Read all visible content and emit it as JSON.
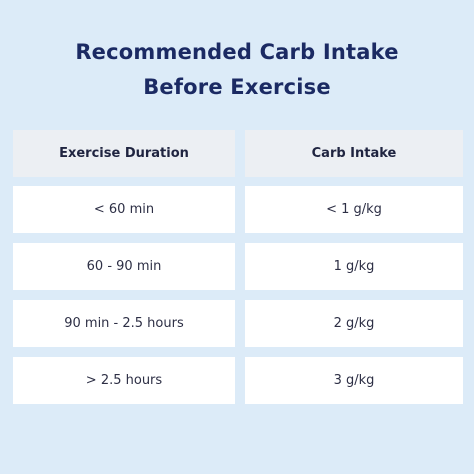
{
  "title": [
    "Recommended Carb Intake",
    "Before Exercise"
  ],
  "table": {
    "header": [
      "Exercise Duration",
      "Carb Intake"
    ],
    "rows": [
      [
        "< 60 min",
        "< 1 g/kg"
      ],
      [
        "60 - 90 min",
        "1 g/kg"
      ],
      [
        "90 min - 2.5 hours",
        "2 g/kg"
      ],
      [
        "> 2.5 hours",
        "3 g/kg"
      ]
    ]
  }
}
